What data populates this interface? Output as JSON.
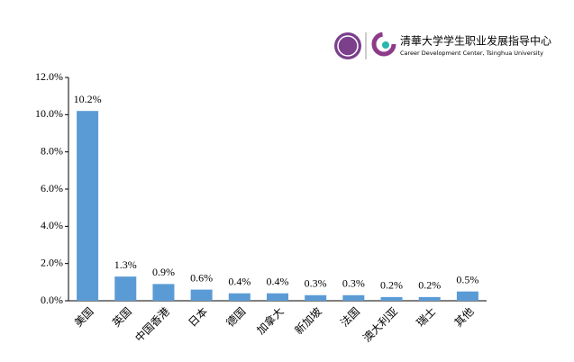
{
  "header": {
    "org_cn": "清華大学学生职业发展指导中心",
    "org_en": "Career Development Center, Tsinghua University"
  },
  "chart_data": {
    "type": "bar",
    "categories": [
      "美国",
      "英国",
      "中国香港",
      "日本",
      "德国",
      "加拿大",
      "新加坡",
      "法国",
      "澳大利亚",
      "瑞士",
      "其他"
    ],
    "values": [
      10.2,
      1.3,
      0.9,
      0.6,
      0.4,
      0.4,
      0.3,
      0.3,
      0.2,
      0.2,
      0.5
    ],
    "value_labels": [
      "10.2%",
      "1.3%",
      "0.9%",
      "0.6%",
      "0.4%",
      "0.4%",
      "0.3%",
      "0.3%",
      "0.2%",
      "0.2%",
      "0.5%"
    ],
    "color": "#5b9bd5",
    "ylim": [
      0,
      12
    ],
    "yticks": [
      {
        "value": 0,
        "label": "0.0%"
      },
      {
        "value": 2,
        "label": "2.0%"
      },
      {
        "value": 4,
        "label": "4.0%"
      },
      {
        "value": 6,
        "label": "6.0%"
      },
      {
        "value": 8,
        "label": "8.0%"
      },
      {
        "value": 10,
        "label": "10.0%"
      },
      {
        "value": 12,
        "label": "12.0%"
      }
    ]
  }
}
